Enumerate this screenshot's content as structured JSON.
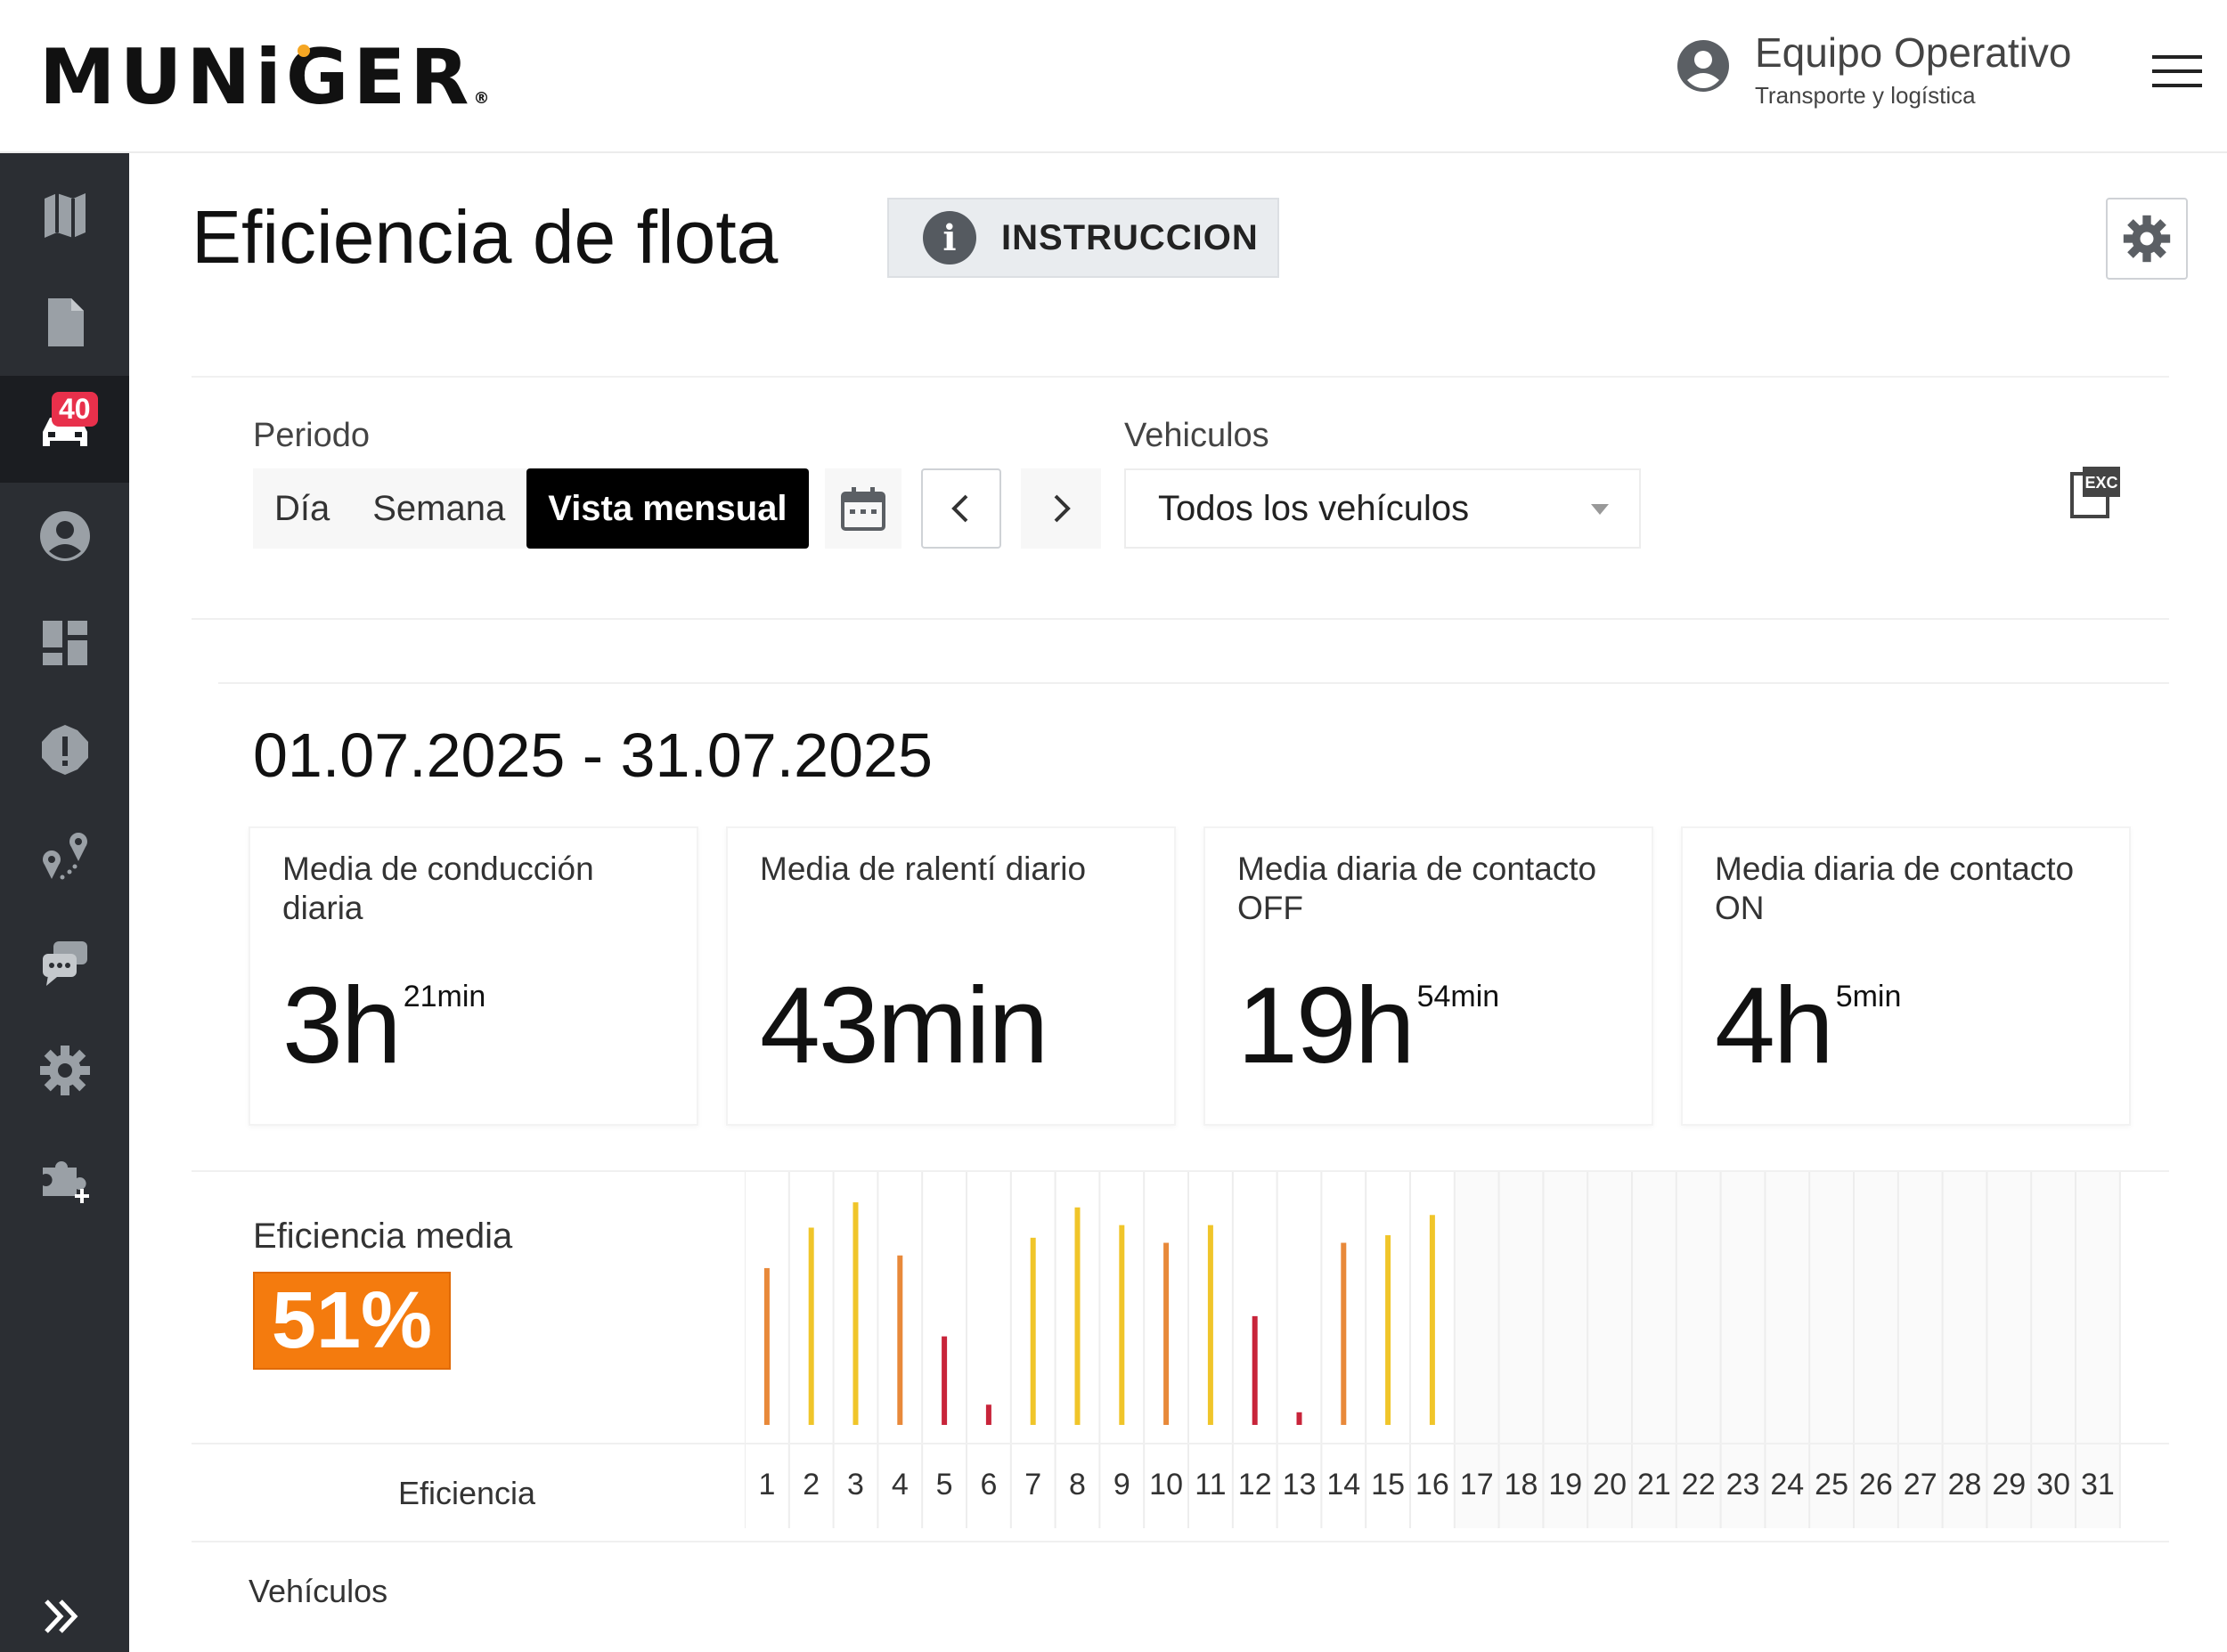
{
  "header": {
    "logo": "MUNiGER",
    "logo_mark": "®",
    "user_name": "Equipo Operativo",
    "user_subtitle": "Transporte y logística"
  },
  "sidebar": {
    "items": [
      {
        "icon": "map-icon"
      },
      {
        "icon": "document-icon"
      },
      {
        "icon": "car-icon",
        "badge": "40",
        "active": true
      },
      {
        "icon": "user-icon"
      },
      {
        "icon": "dashboard-icon"
      },
      {
        "icon": "alert-icon"
      },
      {
        "icon": "route-icon"
      },
      {
        "icon": "chat-icon"
      },
      {
        "icon": "settings-icon"
      },
      {
        "icon": "plugin-add-icon"
      }
    ],
    "expand_icon": "double-chevron-right-icon"
  },
  "page": {
    "title": "Eficiencia de flota",
    "instruction_label": "INSTRUCCION"
  },
  "filters": {
    "periodo_label": "Periodo",
    "periods": [
      "Día",
      "Semana",
      "Vista mensual"
    ],
    "active_period": "Vista mensual",
    "vehiculos_label": "Vehiculos",
    "vehiculos_value": "Todos los vehículos",
    "export_icon_text": "EXC"
  },
  "date_range": "01.07.2025 - 31.07.2025",
  "kpis": [
    {
      "title": "Media de conducción diaria",
      "value": "3h",
      "sup": "21min"
    },
    {
      "title": "Media de ralentí diario",
      "value": "43min",
      "sup": ""
    },
    {
      "title": "Media diaria de contacto OFF",
      "value": "19h",
      "sup": "54min"
    },
    {
      "title": "Media diaria de contacto ON",
      "value": "4h",
      "sup": "5min"
    }
  ],
  "efficiency": {
    "label": "Eficiencia media",
    "value": "51%",
    "row_label": "Eficiencia",
    "vehicles_label": "Vehículos"
  },
  "colors": {
    "orange": "#e8893a",
    "yellow": "#f0c52a",
    "red": "#c8243a",
    "badge": "#f47b0e"
  },
  "chart_data": {
    "type": "bar",
    "categories": [
      "1",
      "2",
      "3",
      "4",
      "5",
      "6",
      "7",
      "8",
      "9",
      "10",
      "11",
      "12",
      "13",
      "14",
      "15",
      "16",
      "17",
      "18",
      "19",
      "20",
      "21",
      "22",
      "23",
      "24",
      "25",
      "26",
      "27",
      "28",
      "29",
      "30",
      "31"
    ],
    "values": [
      62,
      78,
      88,
      67,
      35,
      8,
      74,
      86,
      79,
      72,
      79,
      43,
      5,
      72,
      75,
      83,
      null,
      null,
      null,
      null,
      null,
      null,
      null,
      null,
      null,
      null,
      null,
      null,
      null,
      null,
      null
    ],
    "bar_colors": [
      "orange",
      "yellow",
      "yellow",
      "orange",
      "red",
      "red",
      "yellow",
      "yellow",
      "yellow",
      "orange",
      "yellow",
      "red",
      "red",
      "orange",
      "yellow",
      "yellow"
    ],
    "ylim": [
      0,
      100
    ],
    "grid": true,
    "xlabel": "",
    "ylabel": ""
  }
}
